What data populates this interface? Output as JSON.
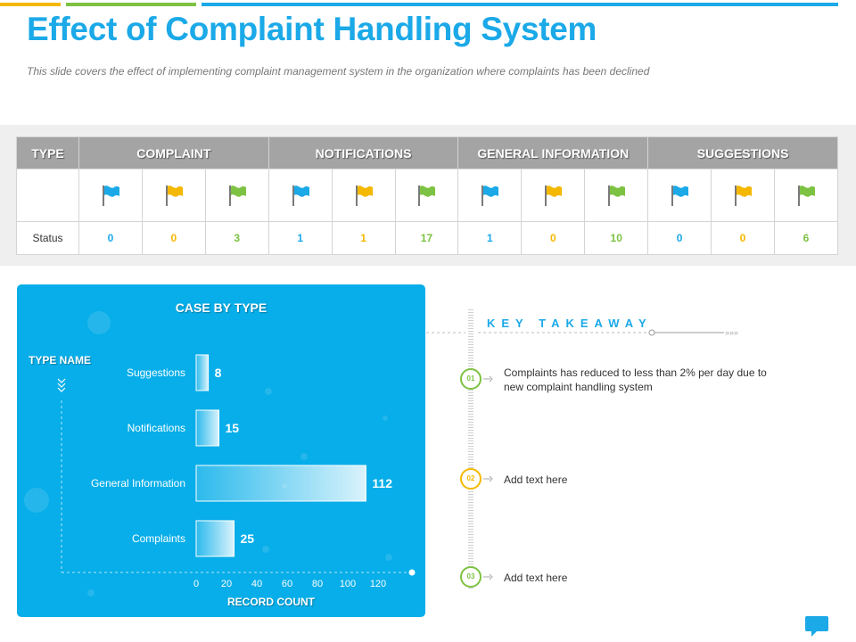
{
  "header": {
    "title": "Effect of Complaint Handling System",
    "subtitle": "This slide covers the effect of implementing complaint management system in the organization where complaints has been declined"
  },
  "colors": {
    "accent_blue": "#1ba9e8",
    "flag_blue": "#1ba9e8",
    "flag_yellow": "#f5b800",
    "flag_green": "#7dc242",
    "chart_bg": "#07aee9",
    "header_gray": "#a4a4a4"
  },
  "status_table": {
    "headers": [
      "TYPE",
      "COMPLAINT",
      "NOTIFICATIONS",
      "GENERAL INFORMATION",
      "SUGGESTIONS"
    ],
    "row_label": "Status",
    "flag_colors": [
      "blue",
      "yellow",
      "green",
      "blue",
      "yellow",
      "green",
      "blue",
      "yellow",
      "green",
      "blue",
      "yellow",
      "green"
    ],
    "values": [
      "0",
      "0",
      "3",
      "1",
      "1",
      "17",
      "1",
      "0",
      "10",
      "0",
      "0",
      "6"
    ]
  },
  "chart_data": {
    "type": "bar",
    "orientation": "horizontal",
    "title": "CASE BY TYPE",
    "ylabel": "TYPE NAME",
    "xlabel": "RECORD COUNT",
    "categories": [
      "Suggestions",
      "Notifications",
      "General Information",
      "Complaints"
    ],
    "values": [
      8,
      15,
      112,
      25
    ],
    "xlim": [
      0,
      120
    ],
    "xticks": [
      0,
      20,
      40,
      60,
      80,
      100,
      120
    ],
    "grid": false,
    "legend": "none"
  },
  "takeaway": {
    "title": "KEY TAKEAWAY",
    "items": [
      {
        "num": "01",
        "text": "Complaints has reduced to less than 2% per day due to new complaint handling system",
        "color": "#7dc242"
      },
      {
        "num": "02",
        "text": "Add text here",
        "color": "#f5b800"
      },
      {
        "num": "03",
        "text": "Add text here",
        "color": "#7dc242"
      }
    ]
  },
  "icons": {
    "status_flag": "flag-icon",
    "chat": "chat-bubble-icon"
  }
}
